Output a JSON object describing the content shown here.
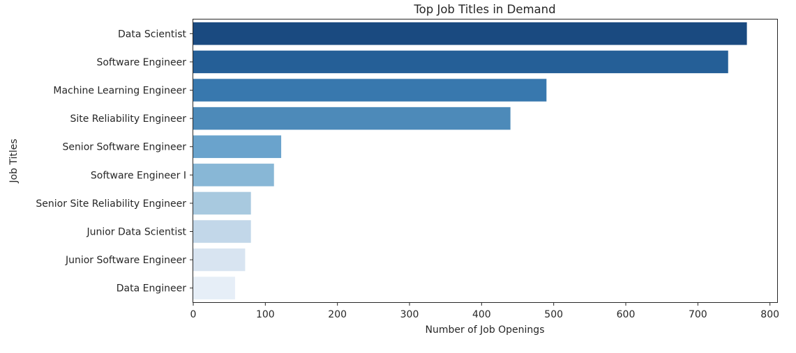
{
  "chart_data": {
    "type": "bar",
    "orientation": "horizontal",
    "title": "Top Job Titles in Demand",
    "xlabel": "Number of Job Openings",
    "ylabel": "Job Titles",
    "categories": [
      "Data Scientist",
      "Software Engineer",
      "Machine Learning Engineer",
      "Site Reliability Engineer",
      "Senior Software Engineer",
      "Software Engineer I",
      "Senior Site Reliability Engineer",
      "Junior Data Scientist",
      "Junior Software Engineer",
      "Data Engineer"
    ],
    "values": [
      768,
      742,
      490,
      440,
      122,
      112,
      80,
      80,
      72,
      58
    ],
    "colors": [
      "#1a4a80",
      "#255f97",
      "#3878ae",
      "#4d8ab9",
      "#6aa3cc",
      "#88b7d6",
      "#a8c9df",
      "#c2d7e9",
      "#d8e4f1",
      "#e6eef7"
    ],
    "xlim": [
      0,
      810
    ],
    "xticks": [
      0,
      100,
      200,
      300,
      400,
      500,
      600,
      700,
      800
    ],
    "grid": false,
    "legend": false
  }
}
